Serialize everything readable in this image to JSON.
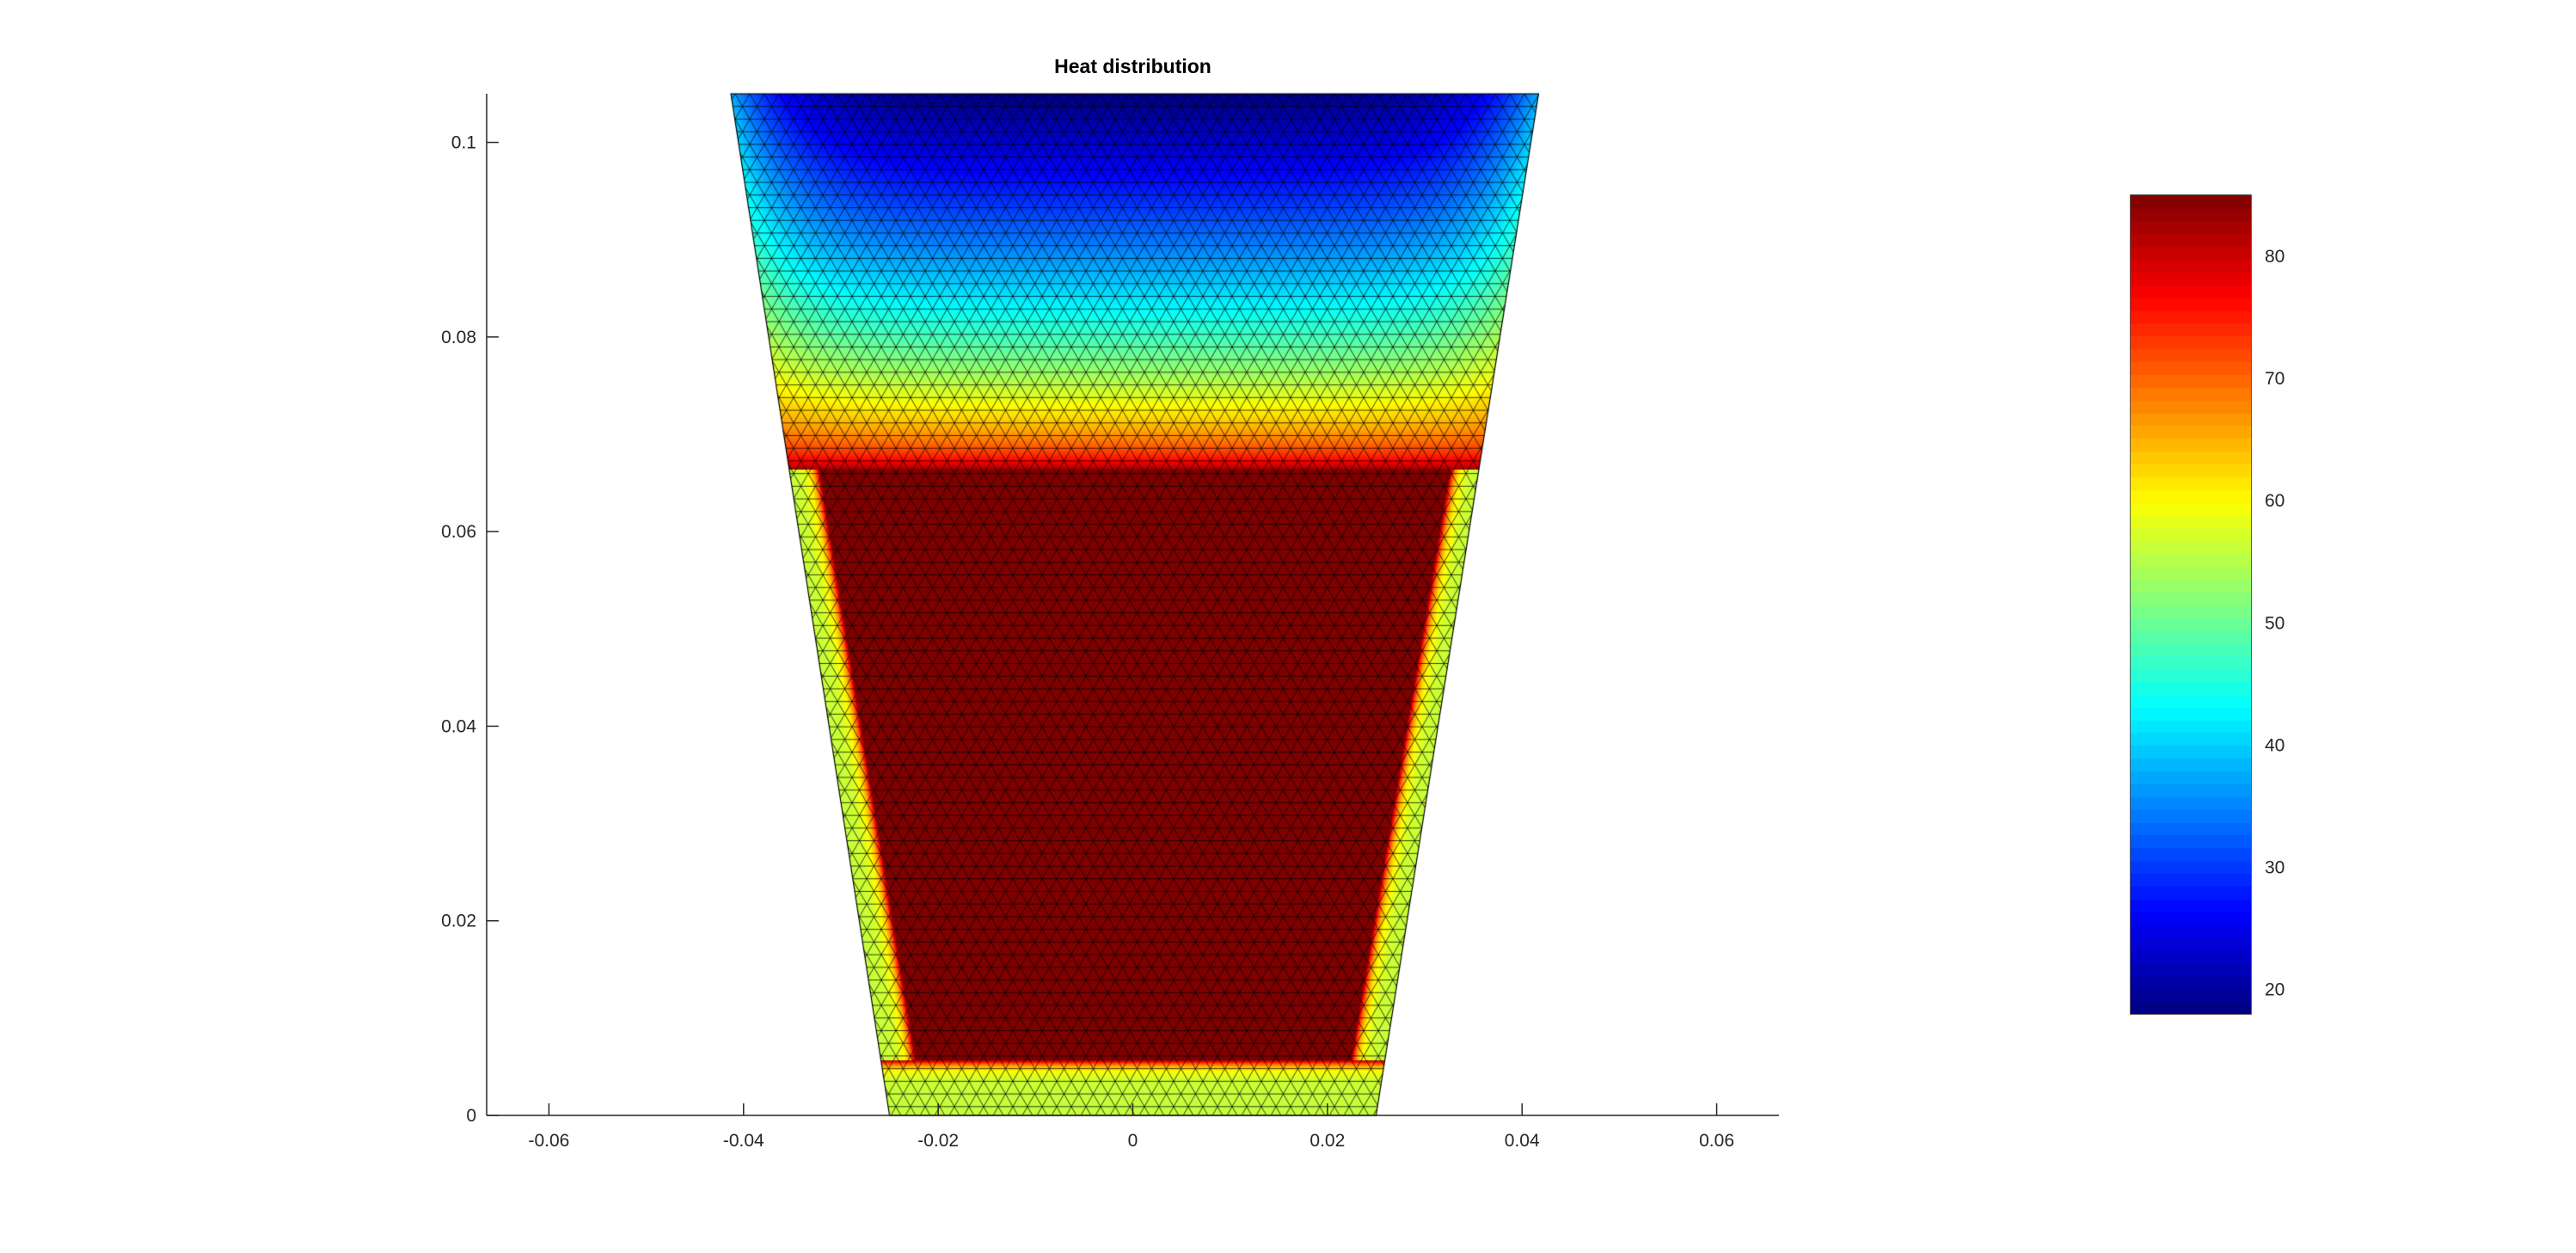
{
  "chart_data": {
    "type": "heatmap",
    "plot_kind": "triangular mesh surface (pdeplot)",
    "title": "Heat distribution",
    "xlabel": "",
    "ylabel": "",
    "xlim": [
      -0.0664,
      0.0664
    ],
    "ylim": [
      0,
      0.105
    ],
    "xticks": [
      -0.06,
      -0.04,
      -0.02,
      0,
      0.02,
      0.04,
      0.06
    ],
    "xtick_labels": [
      "-0.06",
      "-0.04",
      "-0.02",
      "0",
      "0.02",
      "0.04",
      "0.06"
    ],
    "yticks": [
      0,
      0.02,
      0.04,
      0.06,
      0.08,
      0.1
    ],
    "ytick_labels": [
      "0",
      "0.02",
      "0.04",
      "0.06",
      "0.08",
      "0.1"
    ],
    "grid": false,
    "mesh_edges_visible": true,
    "colormap": "jet",
    "outer_domain": [
      [
        -0.025,
        0
      ],
      [
        0.025,
        0
      ],
      [
        0.0417,
        0.105
      ],
      [
        -0.0413,
        0.105
      ]
    ],
    "inner_region": [
      [
        -0.0223,
        0.0057
      ],
      [
        0.0224,
        0.0057
      ],
      [
        0.0326,
        0.0664
      ],
      [
        -0.0322,
        0.0664
      ]
    ],
    "inner_region_value": 85,
    "top_center_value": 18,
    "side_value": 56,
    "colorbar": {
      "range": [
        18,
        85
      ],
      "ticks": [
        20,
        30,
        40,
        50,
        60,
        70,
        80
      ],
      "tick_labels": [
        "20",
        "30",
        "40",
        "50",
        "60",
        "70",
        "80"
      ],
      "placement": "right"
    }
  }
}
